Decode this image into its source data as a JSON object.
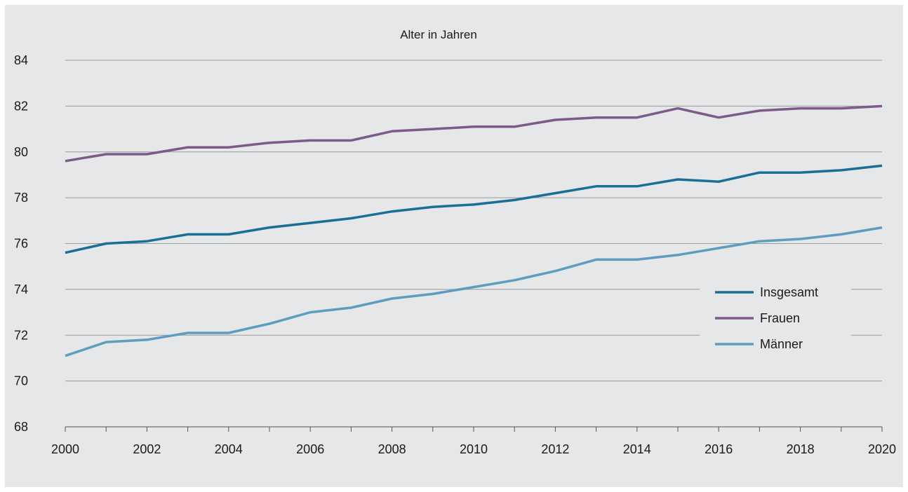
{
  "chart_data": {
    "type": "line",
    "title": "Alter in Jahren",
    "xlabel": "",
    "ylabel": "",
    "x": [
      2000,
      2001,
      2002,
      2003,
      2004,
      2005,
      2006,
      2007,
      2008,
      2009,
      2010,
      2011,
      2012,
      2013,
      2014,
      2015,
      2016,
      2017,
      2018,
      2019,
      2020
    ],
    "xlim": [
      2000,
      2020
    ],
    "xticks": [
      "2000",
      "2002",
      "2004",
      "2006",
      "2008",
      "2010",
      "2012",
      "2014",
      "2016",
      "2018",
      "2020"
    ],
    "ylim": [
      68,
      84
    ],
    "yticks": [
      "68",
      "70",
      "72",
      "74",
      "76",
      "78",
      "80",
      "82",
      "84"
    ],
    "grid": "horizontal",
    "legend_position": "bottom-right",
    "series": [
      {
        "name": "Insgesamt",
        "color": "#1a6f96",
        "values": [
          75.6,
          76.0,
          76.1,
          76.4,
          76.4,
          76.7,
          76.9,
          77.1,
          77.4,
          77.6,
          77.7,
          77.9,
          78.2,
          78.5,
          78.5,
          78.8,
          78.7,
          79.1,
          79.1,
          79.2,
          79.4
        ]
      },
      {
        "name": "Frauen",
        "color": "#7c5a8c",
        "values": [
          79.6,
          79.9,
          79.9,
          80.2,
          80.2,
          80.4,
          80.5,
          80.5,
          80.9,
          81.0,
          81.1,
          81.1,
          81.4,
          81.5,
          81.5,
          81.9,
          81.5,
          81.8,
          81.9,
          81.9,
          82.0
        ]
      },
      {
        "name": "Männer",
        "color": "#5d9dbf",
        "values": [
          71.1,
          71.7,
          71.8,
          72.1,
          72.1,
          72.5,
          73.0,
          73.2,
          73.6,
          73.8,
          74.1,
          74.4,
          74.8,
          75.3,
          75.3,
          75.5,
          75.8,
          76.1,
          76.2,
          76.4,
          76.7
        ]
      }
    ]
  }
}
